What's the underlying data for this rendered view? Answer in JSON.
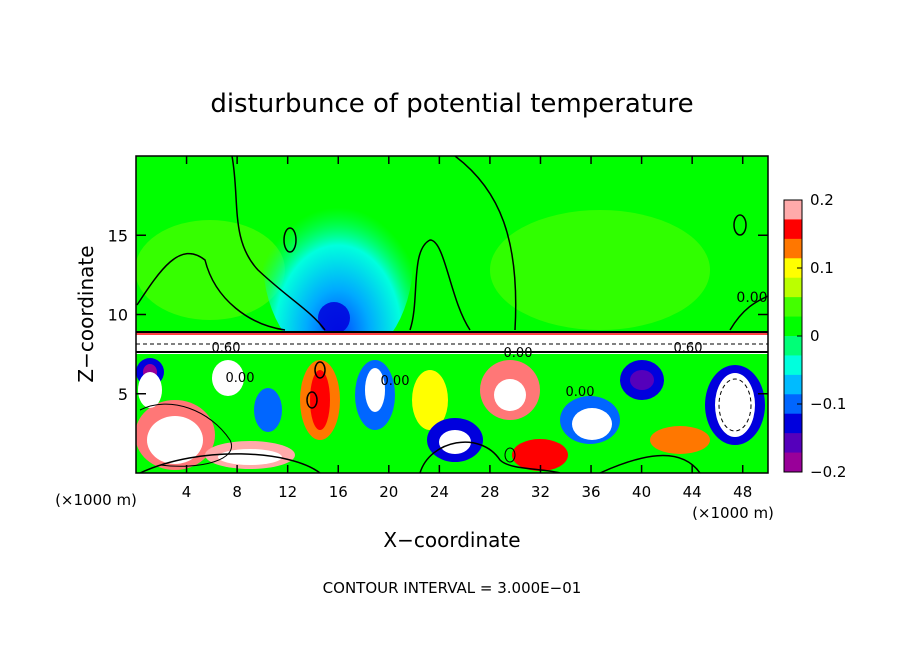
{
  "chart_data": {
    "type": "heatmap",
    "title": "disturbunce of potential temperature",
    "xlabel": "X−coordinate",
    "ylabel": "Z−coordinate",
    "x_unit_left": "(×1000 m)",
    "x_unit_right": "(×1000 m)",
    "footer": "CONTOUR INTERVAL = 3.000E−01",
    "xlim": [
      0,
      50
    ],
    "ylim": [
      0,
      20
    ],
    "x_ticks": [
      4,
      8,
      12,
      16,
      20,
      24,
      28,
      32,
      36,
      40,
      44,
      48
    ],
    "y_ticks": [
      5,
      10,
      15
    ],
    "colorbar": {
      "vmin": -0.2,
      "vmax": 0.2,
      "ticks": [
        0.2,
        0.1,
        0,
        -0.1,
        -0.2
      ],
      "tick_labels": [
        "0.2",
        "0.1",
        "0",
        "−0.1",
        "−0.2"
      ],
      "colors": [
        "#ffaaaa",
        "#ff0000",
        "#ff7700",
        "#ffff00",
        "#bbff00",
        "#44ff00",
        "#00ff00",
        "#00ff77",
        "#00ffdd",
        "#00bbff",
        "#0066ff",
        "#0000dd",
        "#5500bb",
        "#990099"
      ]
    },
    "contour_labels": [
      "0.00",
      "0.60",
      "0.00",
      "0.60",
      "0.00",
      "0.00",
      "0.00"
    ],
    "regions": [
      {
        "kind": "upper-layer",
        "z": [
          9,
          20
        ],
        "value": 0.0
      },
      {
        "kind": "cold-plume",
        "x": [
          13,
          19
        ],
        "z": [
          8.5,
          18
        ],
        "value": -0.07
      },
      {
        "kind": "strong-negative-core",
        "x": [
          15,
          17
        ],
        "z": [
          8.5,
          10.5
        ],
        "value": -0.15
      },
      {
        "kind": "inversion-band",
        "z": [
          7.5,
          9
        ],
        "value": 0.6
      },
      {
        "kind": "lower-layer",
        "z": [
          0,
          7.5
        ],
        "value": "mixed ±0.2+"
      }
    ]
  }
}
